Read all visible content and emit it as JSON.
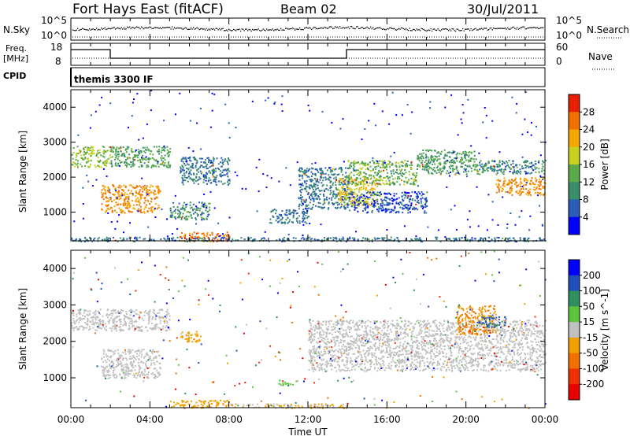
{
  "header": {
    "station": "Fort Hays East (fitACF)",
    "beam": "Beam 02",
    "date": "30/Jul/2011"
  },
  "panels": {
    "nsky": {
      "label": "N.Sky",
      "ticks": [
        "10^5",
        "10^0"
      ],
      "right_label": "N.Search",
      "right_ticks": [
        "10^5",
        "10^0"
      ]
    },
    "freq": {
      "label_line1": "Freq.",
      "label_line2": "[MHz]",
      "ticks": [
        "18",
        "8"
      ],
      "right_label": "Nave",
      "right_ticks": [
        "60",
        "0"
      ]
    },
    "cpid": {
      "label": "CPID",
      "text": "themis 3300 IF"
    }
  },
  "time_axis": {
    "label": "Time UT",
    "ticks": [
      "00:00",
      "04:00",
      "08:00",
      "12:00",
      "16:00",
      "20:00",
      "00:00"
    ]
  },
  "colors": {
    "power": [
      "#0000ff",
      "#2a5db8",
      "#3a8f6a",
      "#5aaa4a",
      "#c8d21e",
      "#f5a800",
      "#f07000",
      "#e82000"
    ],
    "velocity": [
      "#0000ff",
      "#1f4fb8",
      "#2f8f5e",
      "#5ec43e",
      "#c0c0c0",
      "#f0a000",
      "#f07000",
      "#f03000",
      "#e80000"
    ]
  },
  "chart_data": [
    {
      "type": "heatmap",
      "title": "Power",
      "xlabel": "Time UT",
      "ylabel": "Slant Range [km]",
      "xlim": [
        0,
        24
      ],
      "ylim": [
        180,
        4500
      ],
      "yticks": [
        1000,
        2000,
        3000,
        4000
      ],
      "colorbar": {
        "label": "Power [dB]",
        "ticks": [
          4,
          8,
          12,
          16,
          20,
          24,
          28
        ],
        "range": [
          0,
          32
        ]
      },
      "regions": [
        {
          "t0": 0.0,
          "t1": 2.0,
          "r0": 2300,
          "r1": 2900,
          "value": 16
        },
        {
          "t0": 1.5,
          "t1": 4.5,
          "r0": 1000,
          "r1": 1800,
          "value": 24
        },
        {
          "t0": 2.0,
          "t1": 5.0,
          "r0": 2300,
          "r1": 2900,
          "value": 12
        },
        {
          "t0": 5.5,
          "t1": 8.0,
          "r0": 1800,
          "r1": 2600,
          "value": 8
        },
        {
          "t0": 5.0,
          "t1": 7.0,
          "r0": 800,
          "r1": 1300,
          "value": 10
        },
        {
          "t0": 5.5,
          "t1": 8.0,
          "r0": 180,
          "r1": 450,
          "value": 26
        },
        {
          "t0": 10.0,
          "t1": 12.0,
          "r0": 700,
          "r1": 1100,
          "value": 8
        },
        {
          "t0": 11.5,
          "t1": 14.0,
          "r0": 1100,
          "r1": 2300,
          "value": 8
        },
        {
          "t0": 13.5,
          "t1": 15.5,
          "r0": 1200,
          "r1": 2000,
          "value": 20
        },
        {
          "t0": 14.0,
          "t1": 18.0,
          "r0": 1000,
          "r1": 1600,
          "value": 6
        },
        {
          "t0": 14.0,
          "t1": 17.5,
          "r0": 1800,
          "r1": 2500,
          "value": 14
        },
        {
          "t0": 17.5,
          "t1": 20.5,
          "r0": 2100,
          "r1": 2800,
          "value": 12
        },
        {
          "t0": 20.5,
          "t1": 24.0,
          "r0": 2100,
          "r1": 2500,
          "value": 10
        },
        {
          "t0": 21.5,
          "t1": 24.0,
          "r0": 1500,
          "r1": 2000,
          "value": 24
        },
        {
          "t0": 0.0,
          "t1": 24.0,
          "r0": 180,
          "r1": 300,
          "value": 8
        }
      ]
    },
    {
      "type": "heatmap",
      "title": "Velocity",
      "xlabel": "Time UT",
      "ylabel": "Slant Range [km]",
      "xlim": [
        0,
        24
      ],
      "ylim": [
        180,
        4500
      ],
      "yticks": [
        1000,
        2000,
        3000,
        4000
      ],
      "colorbar": {
        "label": "Velocity [m s^-1]",
        "ticks": [
          200,
          100,
          50,
          15,
          -15,
          -50,
          -100,
          -200
        ],
        "range": [
          -250,
          250
        ]
      },
      "regions": [
        {
          "t0": 0.0,
          "t1": 2.0,
          "r0": 2300,
          "r1": 2900,
          "value": 0
        },
        {
          "t0": 1.5,
          "t1": 4.5,
          "r0": 1000,
          "r1": 1800,
          "value": 0
        },
        {
          "t0": 2.0,
          "t1": 5.0,
          "r0": 2300,
          "r1": 2900,
          "value": 0
        },
        {
          "t0": 5.5,
          "t1": 6.5,
          "r0": 2000,
          "r1": 2300,
          "value": -70
        },
        {
          "t0": 5.0,
          "t1": 8.0,
          "r0": 180,
          "r1": 400,
          "value": -50
        },
        {
          "t0": 8.0,
          "t1": 14.0,
          "r0": 180,
          "r1": 300,
          "value": -30
        },
        {
          "t0": 10.5,
          "t1": 11.5,
          "r0": 800,
          "r1": 950,
          "value": 40
        },
        {
          "t0": 12.0,
          "t1": 24.0,
          "r0": 1200,
          "r1": 2600,
          "value": 0
        },
        {
          "t0": 19.5,
          "t1": 21.5,
          "r0": 2200,
          "r1": 3000,
          "value": -80
        },
        {
          "t0": 20.5,
          "t1": 22.0,
          "r0": 2400,
          "r1": 2700,
          "value": 150
        }
      ]
    }
  ]
}
